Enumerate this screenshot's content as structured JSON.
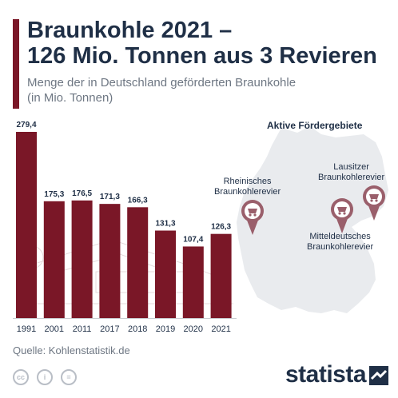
{
  "title_line1": "Braunkohle 2021 –",
  "title_line2": "126 Mio. Tonnen aus 3 Revieren",
  "subtitle_line1": "Menge der in Deutschland geförderten Braunkohle",
  "subtitle_line2": "(in Mio. Tonnen)",
  "colors": {
    "bar": "#7a1727",
    "title": "#1f2f46",
    "map": "#e9ebee",
    "pin": "#9a5f6b"
  },
  "chart_data": {
    "type": "bar",
    "categories": [
      "1991",
      "2001",
      "2011",
      "2017",
      "2018",
      "2019",
      "2020",
      "2021"
    ],
    "values": [
      279.4,
      175.3,
      176.5,
      171.3,
      166.3,
      131.3,
      107.4,
      126.3
    ],
    "value_labels": [
      "279,4",
      "175,3",
      "176,5",
      "171,3",
      "166,3",
      "131,3",
      "107,4",
      "126,3"
    ],
    "ylim": [
      0,
      279.4
    ],
    "title": "",
    "xlabel": "",
    "ylabel": ""
  },
  "map": {
    "heading": "Aktive Fördergebiete",
    "regions": [
      {
        "name_line1": "Rheinisches",
        "name_line2": "Braunkohlerevier",
        "icon": "mining-cart-pin-icon"
      },
      {
        "name_line1": "Mitteldeutsches",
        "name_line2": "Braunkohlerevier",
        "icon": "mining-cart-pin-icon"
      },
      {
        "name_line1": "Lausitzer",
        "name_line2": "Braunkohlerevier",
        "icon": "mining-cart-pin-icon"
      }
    ]
  },
  "source": "Quelle: Kohlenstatistik.de",
  "license_icons": [
    "cc-icon",
    "person-icon",
    "equals-icon"
  ],
  "license_glyphs": [
    "cc",
    "i",
    "="
  ],
  "brand": "statista"
}
